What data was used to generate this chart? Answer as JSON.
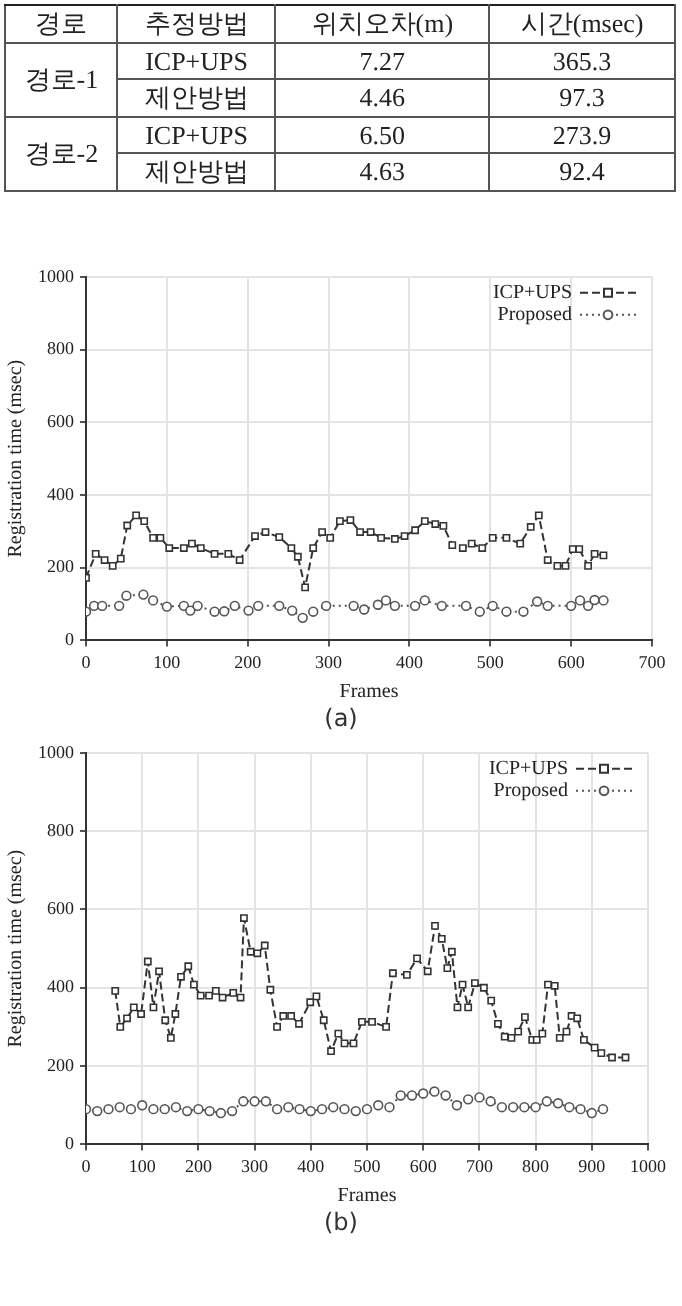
{
  "chart_data": [
    {
      "type": "other",
      "categories": [
        "경로",
        "추정방법",
        "위치오차(m)",
        "시간(msec)"
      ],
      "cell_labels": [
        [
          "경로-1",
          "ICP+UPS",
          "7.27",
          "365.3"
        ],
        [
          null,
          "제안방법",
          "4.46",
          "97.3"
        ],
        [
          "경로-2",
          "ICP+UPS",
          "6.50",
          "273.9"
        ],
        [
          null,
          "제안방법",
          "4.63",
          "92.4"
        ]
      ]
    },
    {
      "type": "line",
      "xlabel": "Frames",
      "ylabel": "Registration time (msec)",
      "annotations": [
        "(a)"
      ],
      "xlim": [
        0,
        700
      ],
      "xticks": [
        0,
        100,
        200,
        300,
        400,
        500,
        600,
        700
      ],
      "ylim": [
        0,
        1000
      ],
      "yticks": [
        0,
        200,
        400,
        600,
        800,
        1000
      ],
      "grid": true,
      "legend": "top right",
      "series": [
        {
          "name": "ICP+UPS",
          "color": "#333333",
          "marker": "square",
          "line_style": "dashed",
          "x": [
            0,
            12,
            23,
            33,
            43,
            51,
            62,
            72,
            83,
            92,
            103,
            121,
            131,
            142,
            159,
            176,
            190,
            209,
            222,
            239,
            254,
            262,
            271,
            281,
            292,
            302,
            314,
            327,
            339,
            352,
            365,
            382,
            394,
            407,
            419,
            432,
            442,
            453,
            466,
            477,
            490,
            503,
            520,
            537,
            550,
            560,
            571,
            583,
            593,
            602,
            610,
            621,
            629,
            640
          ],
          "values": [
            172,
            238,
            221,
            205,
            225,
            316,
            344,
            328,
            282,
            282,
            254,
            254,
            266,
            254,
            238,
            238,
            221,
            287,
            298,
            284,
            254,
            230,
            146,
            254,
            298,
            282,
            328,
            331,
            298,
            298,
            282,
            279,
            287,
            303,
            328,
            320,
            315,
            262,
            254,
            266,
            254,
            282,
            282,
            266,
            312,
            344,
            221,
            205,
            205,
            251,
            251,
            205,
            238,
            234
          ]
        },
        {
          "name": "Proposed",
          "color": "#555555",
          "marker": "circle",
          "line_style": "dotted",
          "x": [
            0,
            10,
            20,
            41,
            50,
            71,
            83,
            100,
            121,
            129,
            138,
            159,
            171,
            184,
            201,
            213,
            239,
            255,
            268,
            281,
            297,
            331,
            344,
            361,
            371,
            382,
            407,
            419,
            440,
            470,
            487,
            503,
            520,
            541,
            558,
            571,
            600,
            611,
            621,
            629,
            640
          ],
          "values": [
            79,
            95,
            95,
            95,
            123,
            126,
            110,
            93,
            95,
            82,
            95,
            79,
            80,
            95,
            82,
            95,
            95,
            82,
            62,
            79,
            95,
            95,
            85,
            98,
            110,
            95,
            95,
            110,
            95,
            95,
            79,
            95,
            79,
            79,
            107,
            95,
            95,
            110,
            95,
            111,
            110
          ]
        }
      ]
    },
    {
      "type": "line",
      "xlabel": "Frames",
      "ylabel": "Registration time (msec)",
      "annotations": [
        "(b)"
      ],
      "xlim": [
        0,
        1000
      ],
      "xticks": [
        0,
        100,
        200,
        300,
        400,
        500,
        600,
        700,
        800,
        900,
        1000
      ],
      "ylim": [
        0,
        1000
      ],
      "yticks": [
        0,
        200,
        400,
        600,
        800,
        1000
      ],
      "grid": true,
      "legend": "top right",
      "series": [
        {
          "name": "ICP+UPS",
          "color": "#333333",
          "marker": "square",
          "line_style": "dashed",
          "x": [
            52,
            61,
            73,
            85,
            98,
            110,
            120,
            130,
            141,
            151,
            159,
            169,
            182,
            192,
            204,
            219,
            231,
            243,
            262,
            275,
            281,
            293,
            305,
            318,
            328,
            340,
            351,
            365,
            379,
            399,
            410,
            423,
            436,
            449,
            460,
            476,
            491,
            509,
            534,
            546,
            571,
            589,
            608,
            621,
            633,
            643,
            651,
            661,
            670,
            680,
            692,
            708,
            721,
            733,
            745,
            757,
            769,
            781,
            794,
            802,
            812,
            822,
            834,
            843,
            855,
            864,
            874,
            886,
            905,
            917,
            936,
            960
          ],
          "values": [
            392,
            300,
            322,
            350,
            333,
            467,
            350,
            442,
            317,
            272,
            333,
            428,
            455,
            408,
            380,
            380,
            392,
            375,
            387,
            375,
            578,
            492,
            488,
            508,
            395,
            300,
            328,
            328,
            308,
            363,
            378,
            317,
            238,
            283,
            258,
            258,
            313,
            313,
            300,
            437,
            433,
            475,
            442,
            558,
            525,
            450,
            492,
            350,
            408,
            350,
            412,
            400,
            367,
            308,
            275,
            272,
            288,
            325,
            267,
            267,
            283,
            408,
            405,
            272,
            288,
            328,
            322,
            267,
            247,
            233,
            222,
            222
          ]
        },
        {
          "name": "Proposed",
          "color": "#555555",
          "marker": "circle",
          "line_style": "dotted",
          "x": [
            0,
            20,
            40,
            60,
            80,
            100,
            120,
            140,
            160,
            180,
            200,
            220,
            240,
            260,
            280,
            300,
            320,
            340,
            360,
            380,
            400,
            420,
            440,
            460,
            480,
            500,
            520,
            540,
            560,
            580,
            600,
            620,
            640,
            660,
            680,
            700,
            720,
            740,
            760,
            780,
            800,
            820,
            840,
            860,
            880,
            900,
            920
          ],
          "values": [
            90,
            85,
            90,
            95,
            90,
            100,
            90,
            90,
            95,
            85,
            90,
            85,
            80,
            85,
            110,
            110,
            110,
            90,
            95,
            90,
            85,
            90,
            95,
            90,
            85,
            90,
            100,
            95,
            125,
            125,
            130,
            135,
            125,
            100,
            115,
            120,
            110,
            95,
            95,
            95,
            95,
            110,
            105,
            95,
            90,
            80,
            90
          ]
        }
      ]
    }
  ]
}
